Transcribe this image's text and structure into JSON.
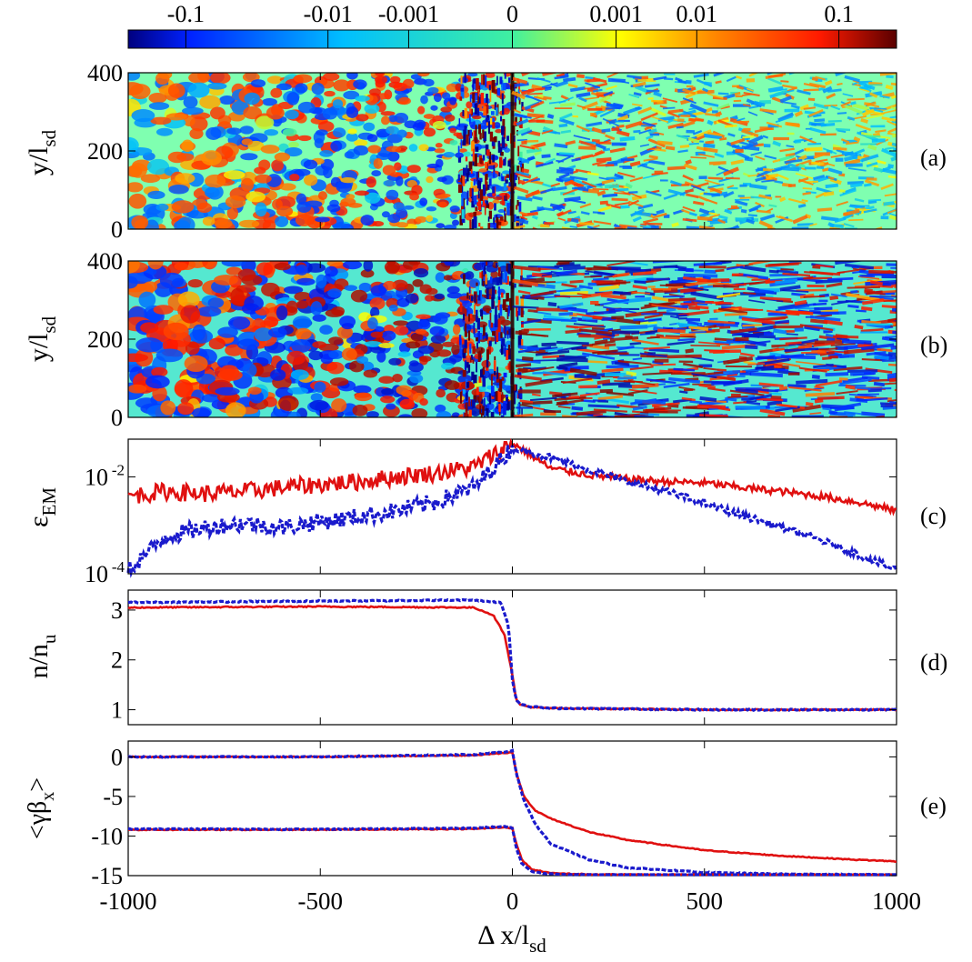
{
  "colorbar": {
    "ticks": [
      "-0.1",
      "-0.01",
      "-0.001",
      "0",
      "0.001",
      "0.01",
      "0.1"
    ],
    "stops": [
      "#00007f",
      "#0022ff",
      "#00bfff",
      "#40f0a0",
      "#ffff00",
      "#ff8a00",
      "#ff1a00",
      "#5a0000"
    ]
  },
  "panels": [
    {
      "letter": "(a)",
      "ylabel": "y/l",
      "ylabel_sub": "sd",
      "yticks": [
        "400",
        "200",
        "0"
      ]
    },
    {
      "letter": "(b)",
      "ylabel": "y/l",
      "ylabel_sub": "sd",
      "yticks": [
        "400",
        "200",
        "0"
      ]
    },
    {
      "letter": "(c)",
      "ylabel": "ε",
      "ylabel_sub": "EM",
      "yticks": [
        "10",
        "10"
      ],
      "ytick_exps": [
        "-2",
        "-4"
      ]
    },
    {
      "letter": "(d)",
      "ylabel": "n/n",
      "ylabel_sub": "u",
      "yticks": [
        "3",
        "2",
        "1"
      ]
    },
    {
      "letter": "(e)",
      "ylabel": "<γβ",
      "ylabel_sub": "x",
      "ylabel_tail": ">",
      "yticks": [
        "0",
        "-5",
        "-10",
        "-15"
      ]
    }
  ],
  "xaxis": {
    "label": "Δ x/l",
    "label_sub": "sd",
    "ticks": [
      "-1000",
      "-500",
      "0",
      "500",
      "1000"
    ]
  },
  "chart_data": [
    {
      "type": "heatmap",
      "panel": "a",
      "x_range": [
        -1000,
        1000
      ],
      "y_range": [
        0,
        400
      ],
      "xlabel": "Δ x/l_sd",
      "ylabel": "y/l_sd",
      "colorbar": {
        "scale": "symlog",
        "ticks": [
          -0.1,
          -0.01,
          -0.001,
          0,
          0.001,
          0.01,
          0.1
        ]
      },
      "features": {
        "shock_x": 0,
        "upstream_texture": "filamentary, fine-scale near shock",
        "downstream_texture": "large blobs, lower amplitude"
      }
    },
    {
      "type": "heatmap",
      "panel": "b",
      "x_range": [
        -1000,
        1000
      ],
      "y_range": [
        0,
        400
      ],
      "xlabel": "Δ x/l_sd",
      "ylabel": "y/l_sd",
      "colorbar": {
        "scale": "symlog",
        "ticks": [
          -0.1,
          -0.01,
          -0.001,
          0,
          0.001,
          0.01,
          0.1
        ]
      },
      "features": {
        "shock_x": 0,
        "upstream_texture": "elongated filaments",
        "downstream_texture": "high-amplitude blobs"
      }
    },
    {
      "type": "line",
      "panel": "c",
      "yscale": "log",
      "ylim": [
        0.0001,
        0.06
      ],
      "xlim": [
        -1000,
        1000
      ],
      "ylabel": "ε_EM",
      "series": [
        {
          "color": "#e01010",
          "style": "solid",
          "x": [
            -1000,
            -900,
            -800,
            -700,
            -600,
            -500,
            -400,
            -300,
            -200,
            -100,
            0,
            100,
            200,
            300,
            400,
            500,
            600,
            700,
            800,
            900,
            1000
          ],
          "y": [
            0.004,
            0.005,
            0.0045,
            0.005,
            0.006,
            0.007,
            0.008,
            0.01,
            0.012,
            0.016,
            0.05,
            0.015,
            0.011,
            0.009,
            0.008,
            0.0075,
            0.006,
            0.005,
            0.004,
            0.003,
            0.002
          ]
        },
        {
          "color": "#1a1acc",
          "style": "dotted",
          "x": [
            -1000,
            -900,
            -800,
            -700,
            -600,
            -500,
            -400,
            -300,
            -200,
            -100,
            0,
            100,
            200,
            300,
            400,
            500,
            600,
            700,
            800,
            900,
            1000
          ],
          "y": [
            0.00012,
            0.0006,
            0.0009,
            0.0011,
            0.0009,
            0.0012,
            0.0015,
            0.002,
            0.003,
            0.006,
            0.04,
            0.025,
            0.014,
            0.008,
            0.005,
            0.0028,
            0.0016,
            0.0009,
            0.0005,
            0.00025,
            0.00012
          ]
        }
      ]
    },
    {
      "type": "line",
      "panel": "d",
      "ylim": [
        0.7,
        3.4
      ],
      "xlim": [
        -1000,
        1000
      ],
      "ylabel": "n/n_u",
      "series": [
        {
          "color": "#e01010",
          "style": "solid",
          "x": [
            -1000,
            -500,
            -100,
            -50,
            -20,
            0,
            10,
            20,
            50,
            100,
            500,
            1000
          ],
          "y": [
            3.05,
            3.07,
            3.05,
            2.9,
            2.5,
            1.7,
            1.2,
            1.1,
            1.05,
            1.03,
            1.0,
            1.0
          ]
        },
        {
          "color": "#1a1acc",
          "style": "dotted",
          "x": [
            -1000,
            -500,
            -100,
            -30,
            -10,
            0,
            10,
            20,
            50,
            100,
            500,
            1000
          ],
          "y": [
            3.15,
            3.18,
            3.2,
            3.15,
            2.7,
            1.6,
            1.2,
            1.12,
            1.06,
            1.03,
            1.0,
            1.0
          ]
        }
      ]
    },
    {
      "type": "line",
      "panel": "e",
      "ylim": [
        -15,
        2
      ],
      "xlim": [
        -1000,
        1000
      ],
      "ylabel": "<γβ_x>",
      "series": [
        {
          "color": "#e01010",
          "style": "solid",
          "x": [
            -1000,
            -500,
            -100,
            -20,
            0,
            10,
            30,
            60,
            100,
            200,
            300,
            500,
            700,
            900,
            1000
          ],
          "y": [
            0,
            0,
            0.2,
            0.5,
            0.6,
            -2,
            -5,
            -6.8,
            -7.8,
            -9.5,
            -10.5,
            -11.8,
            -12.5,
            -13,
            -13.2
          ]
        },
        {
          "color": "#1a1acc",
          "style": "dotted",
          "x": [
            -1000,
            -500,
            -100,
            -20,
            0,
            10,
            30,
            60,
            100,
            200,
            300,
            500,
            700,
            1000
          ],
          "y": [
            0,
            0,
            0.3,
            0.6,
            0.8,
            -2,
            -5.5,
            -8.5,
            -11,
            -13,
            -14,
            -14.6,
            -14.8,
            -14.9
          ]
        },
        {
          "color": "#e01010",
          "style": "solid",
          "x": [
            -1000,
            -500,
            -100,
            -20,
            0,
            10,
            25,
            50,
            100,
            200,
            500,
            1000
          ],
          "y": [
            -9.2,
            -9.2,
            -9.1,
            -8.9,
            -9,
            -11,
            -13,
            -14.2,
            -14.7,
            -14.85,
            -14.9,
            -14.9
          ]
        },
        {
          "color": "#1a1acc",
          "style": "dotted",
          "x": [
            -1000,
            -500,
            -100,
            -20,
            0,
            10,
            25,
            50,
            100,
            200,
            500,
            1000
          ],
          "y": [
            -9.1,
            -9.15,
            -9.0,
            -8.8,
            -9,
            -11.5,
            -13.5,
            -14.5,
            -14.8,
            -14.9,
            -14.95,
            -14.95
          ]
        }
      ]
    }
  ]
}
